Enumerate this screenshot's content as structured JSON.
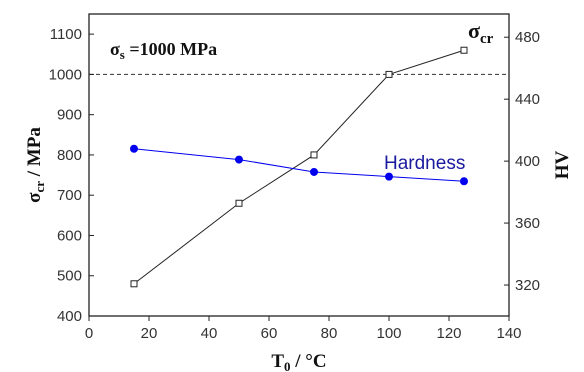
{
  "chart_data": {
    "type": "line",
    "xlabel": {
      "main": "T",
      "sub": "0",
      "rest": " / °C"
    },
    "ylabel_left": {
      "main": "σ",
      "sub": "cr",
      "rest": " / MPa"
    },
    "ylabel_right": "HV",
    "xlim": [
      0,
      140
    ],
    "ylim_left": [
      400,
      1150
    ],
    "ylim_right": [
      300,
      495
    ],
    "x_ticks": [
      0,
      20,
      40,
      60,
      80,
      100,
      120,
      140
    ],
    "y_left_ticks": [
      400,
      500,
      600,
      700,
      800,
      900,
      1000,
      1100
    ],
    "y_right_ticks": [
      320,
      360,
      400,
      440,
      480
    ],
    "grid": false,
    "series": [
      {
        "name": "σcr",
        "axis": "left",
        "marker": "open-square",
        "color": "#222222",
        "x": [
          15,
          50,
          75,
          100,
          125
        ],
        "values": [
          480,
          680,
          800,
          1000,
          1060
        ]
      },
      {
        "name": "Hardness",
        "axis": "right",
        "marker": "filled-circle",
        "color": "#0000ee",
        "x": [
          15,
          50,
          75,
          100,
          125
        ],
        "values": [
          408,
          401,
          393,
          390,
          387
        ]
      }
    ],
    "reference_line": {
      "axis": "left",
      "value": 1000,
      "style": "dashed"
    },
    "annotations": {
      "sigma_s": {
        "main": "σ",
        "sub": "s",
        "rest": " =1000 MPa"
      },
      "sigma_cr": {
        "main": "σ",
        "sub": "cr"
      },
      "hardness": "Hardness"
    }
  }
}
